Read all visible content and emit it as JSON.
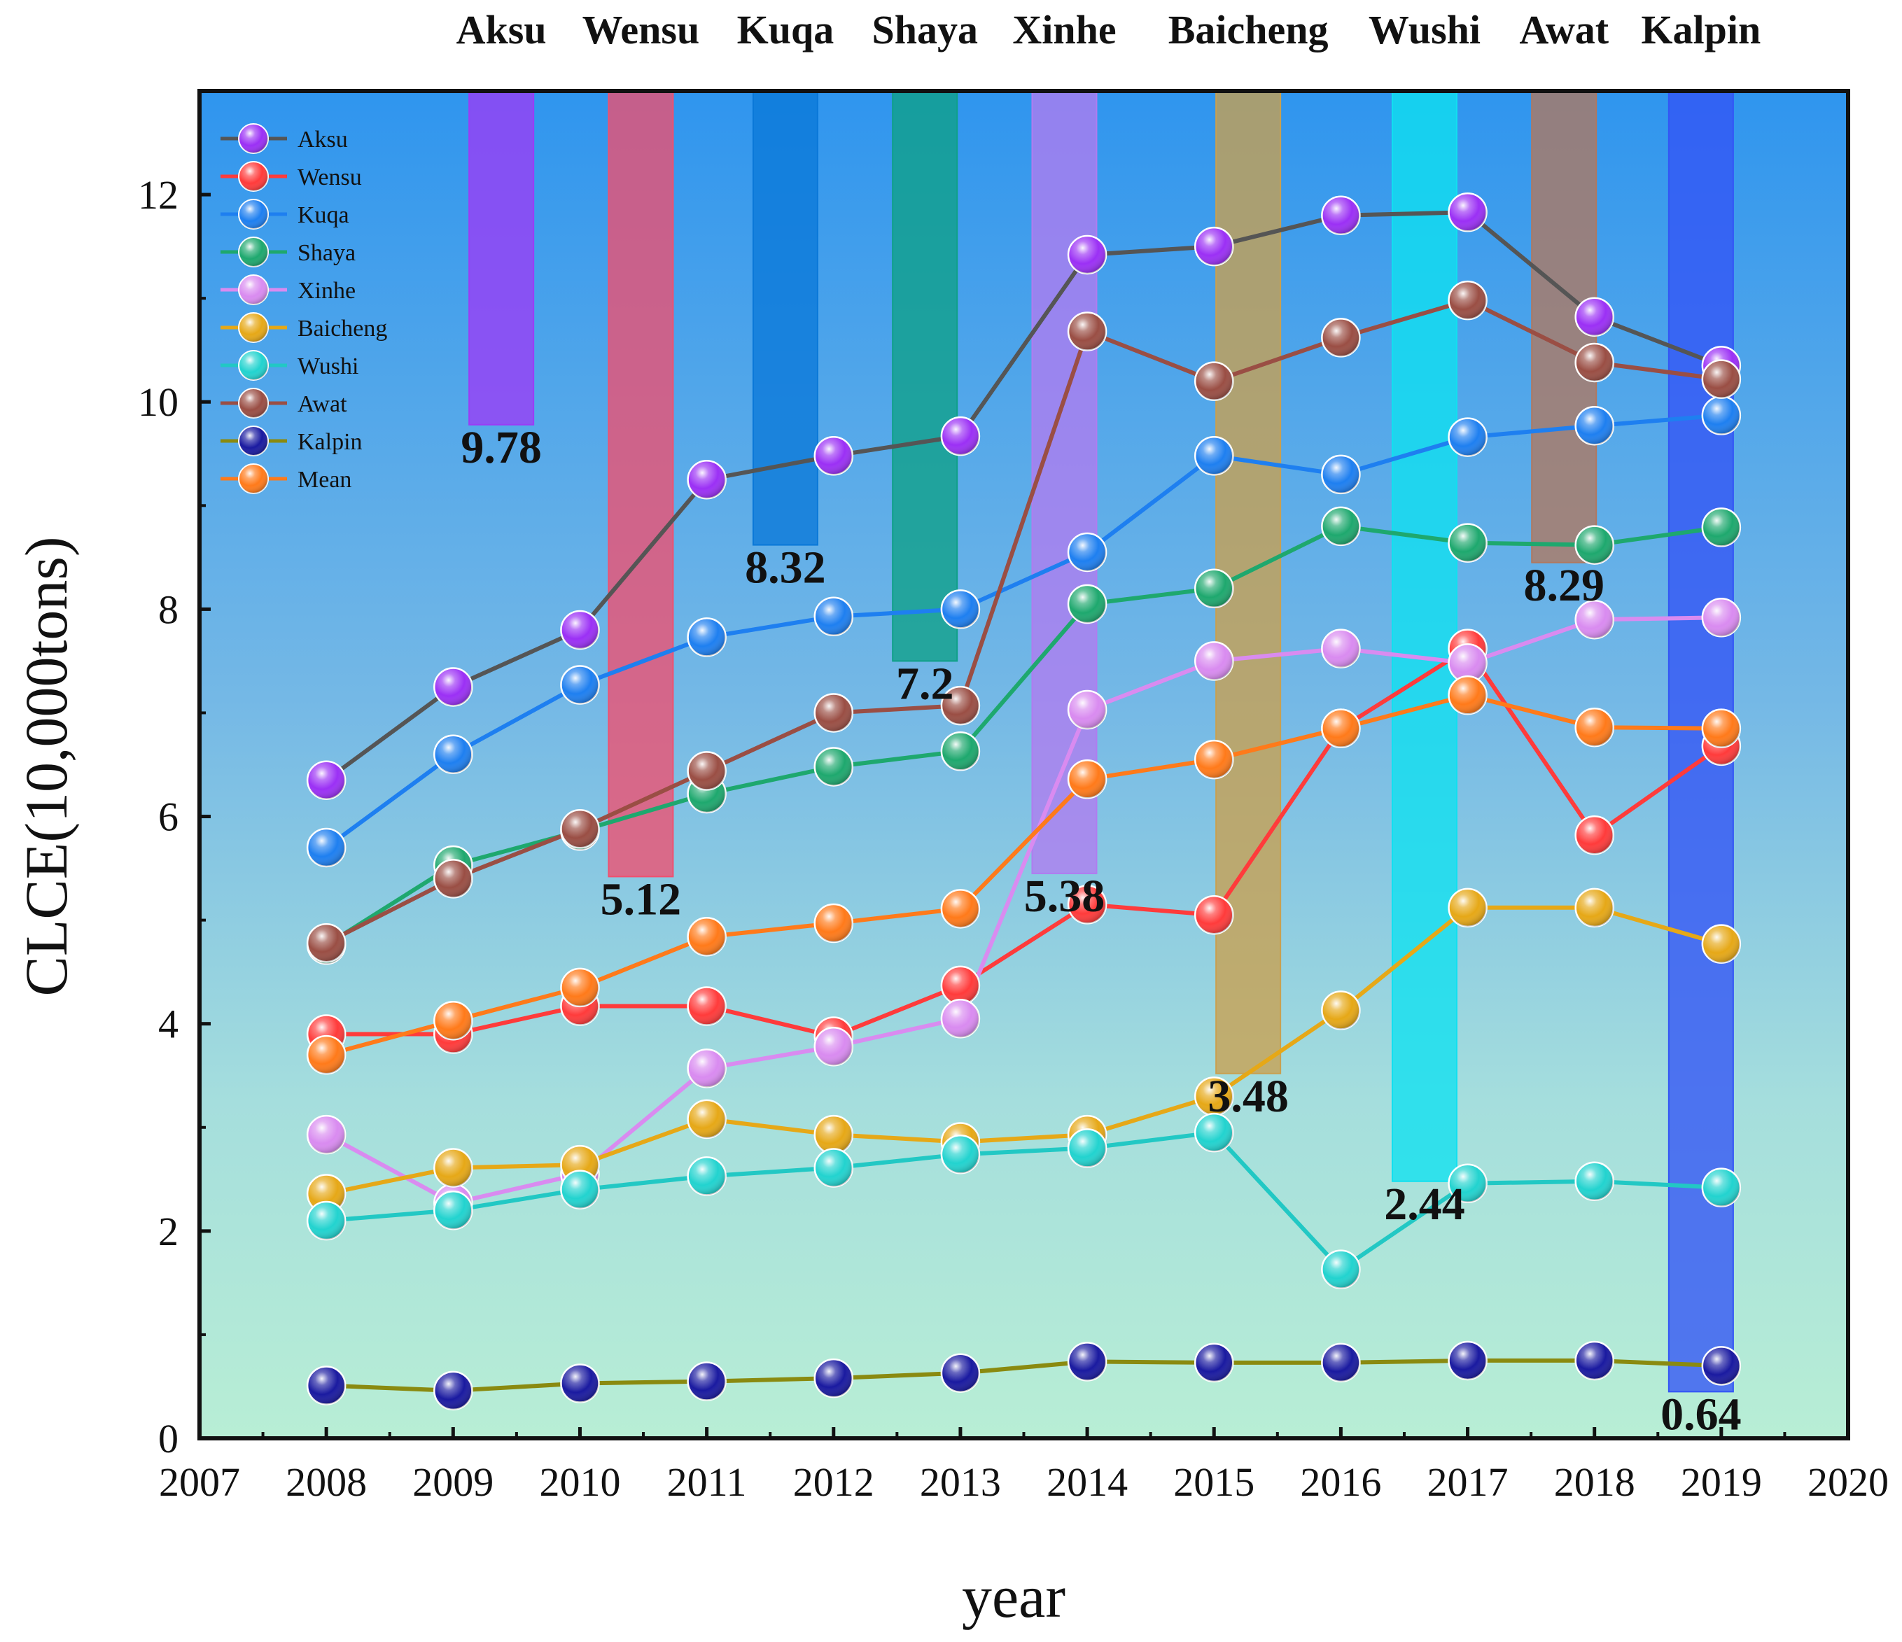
{
  "chart_data": {
    "type": "line",
    "xlabel": "year",
    "ylabel": "CLCE(10,000tons)",
    "xlim": [
      2007,
      2020
    ],
    "ylim": [
      0,
      13
    ],
    "x_ticks": [
      "2007",
      "2008",
      "2009",
      "2010",
      "2011",
      "2012",
      "2013",
      "2014",
      "2015",
      "2016",
      "2017",
      "2018",
      "2019",
      "2020"
    ],
    "y_ticks": [
      "0",
      "2",
      "4",
      "6",
      "8",
      "10",
      "12"
    ],
    "x": [
      2008,
      2009,
      2010,
      2011,
      2012,
      2013,
      2014,
      2015,
      2016,
      2017,
      2018,
      2019
    ],
    "background": "vertical gradient from #2f95ee (top) to #b6ecd6 (bottom)",
    "series": [
      {
        "name": "Aksu",
        "color": "#9b30f5",
        "line_color": "#555555",
        "values": [
          6.35,
          7.25,
          7.8,
          9.25,
          9.48,
          9.67,
          11.42,
          11.5,
          11.8,
          11.83,
          10.82,
          10.35
        ]
      },
      {
        "name": "Wensu",
        "color": "#ff3b3b",
        "line_color": "#ff3b3b",
        "values": [
          3.9,
          3.9,
          4.17,
          4.17,
          3.88,
          4.37,
          5.15,
          5.05,
          6.85,
          7.62,
          5.82,
          6.68
        ]
      },
      {
        "name": "Kuqa",
        "color": "#1e7ff0",
        "line_color": "#1e7ff0",
        "values": [
          5.7,
          6.6,
          7.27,
          7.73,
          7.93,
          8.0,
          8.55,
          9.48,
          9.3,
          9.66,
          9.77,
          9.87
        ]
      },
      {
        "name": "Shaya",
        "color": "#1ea86e",
        "line_color": "#1ea86e",
        "values": [
          4.76,
          5.53,
          5.86,
          6.22,
          6.48,
          6.63,
          8.05,
          8.2,
          8.8,
          8.64,
          8.62,
          8.79
        ]
      },
      {
        "name": "Xinhe",
        "color": "#d98bf0",
        "line_color": "#d98bf0",
        "values": [
          2.93,
          2.27,
          2.55,
          3.57,
          3.78,
          4.05,
          7.03,
          7.5,
          7.62,
          7.48,
          7.9,
          7.92
        ]
      },
      {
        "name": "Baicheng",
        "color": "#e6a817",
        "line_color": "#e6a817",
        "values": [
          2.36,
          2.61,
          2.64,
          3.08,
          2.93,
          2.86,
          2.93,
          3.3,
          4.13,
          5.12,
          5.12,
          4.77
        ]
      },
      {
        "name": "Wushi",
        "color": "#22d3cf",
        "line_color": "#22c8c4",
        "values": [
          2.1,
          2.2,
          2.4,
          2.53,
          2.61,
          2.74,
          2.8,
          2.95,
          1.63,
          2.46,
          2.48,
          2.42
        ]
      },
      {
        "name": "Awat",
        "color": "#9a4e44",
        "line_color": "#9a4e44",
        "values": [
          4.78,
          5.4,
          5.88,
          6.44,
          7.0,
          7.07,
          10.68,
          10.2,
          10.62,
          10.98,
          10.38,
          10.22
        ]
      },
      {
        "name": "Kalpin",
        "color": "#1a1aa0",
        "line_color": "#8a8a10",
        "values": [
          0.51,
          0.46,
          0.53,
          0.55,
          0.58,
          0.63,
          0.74,
          0.73,
          0.73,
          0.75,
          0.75,
          0.7
        ]
      },
      {
        "name": "Mean",
        "color": "#ff7a1a",
        "line_color": "#ff7a1a",
        "values": [
          3.7,
          4.03,
          4.35,
          4.84,
          4.97,
          5.11,
          6.36,
          6.55,
          6.85,
          7.17,
          6.86,
          6.85
        ]
      }
    ],
    "bars": [
      {
        "label": "Aksu",
        "value_label": "9.78",
        "value": 9.78,
        "x": 2009.38,
        "color": "#9b3cf5",
        "bottom": 9.78,
        "top": 13.0
      },
      {
        "label": "Wensu",
        "value_label": "5.12",
        "value": 5.12,
        "x": 2010.48,
        "color": "#ef5070",
        "bottom": 5.42,
        "top": 13.0
      },
      {
        "label": "Kuqa",
        "value_label": "8.32",
        "value": 8.32,
        "x": 2011.62,
        "color": "#0a78d8",
        "bottom": 8.62,
        "top": 13.0
      },
      {
        "label": "Shaya",
        "value_label": "7.2",
        "value": 7.2,
        "x": 2012.72,
        "color": "#0fa088",
        "bottom": 7.5,
        "top": 13.0
      },
      {
        "label": "Xinhe",
        "value_label": "5.38",
        "value": 5.38,
        "x": 2013.82,
        "color": "#b07cf0",
        "bottom": 5.45,
        "top": 13.0
      },
      {
        "label": "Baicheng",
        "value_label": "3.48",
        "value": 3.48,
        "x": 2015.27,
        "color": "#c9a050",
        "bottom": 3.52,
        "top": 13.0
      },
      {
        "label": "Wushi",
        "value_label": "2.44",
        "value": 2.44,
        "x": 2016.66,
        "color": "#10e0f0",
        "bottom": 2.48,
        "top": 13.0
      },
      {
        "label": "Awat",
        "value_label": "8.29",
        "value": 8.29,
        "x": 2017.76,
        "color": "#b07860",
        "bottom": 8.45,
        "top": 13.0
      },
      {
        "label": "Kalpin",
        "value_label": "0.64",
        "value": 0.64,
        "x": 2018.84,
        "color": "#3355f5",
        "bottom": 0.45,
        "top": 13.0
      }
    ],
    "legend_position": "top-left",
    "grid": false
  }
}
